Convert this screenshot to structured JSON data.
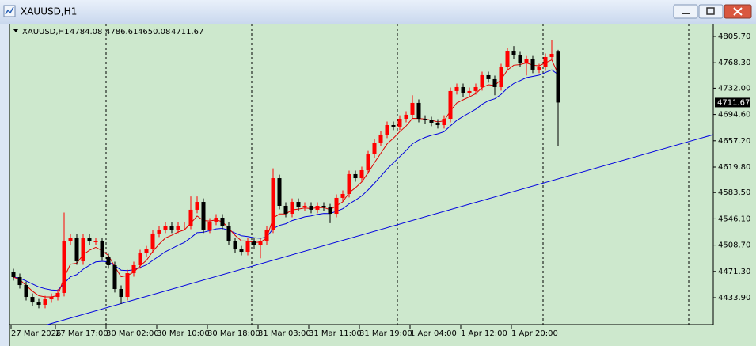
{
  "chart_data": {
    "type": "candlestick",
    "symbol": "XAUUSD,H1",
    "up_color": "#ff0000",
    "down_color": "#000000",
    "categories": [
      "27 Mar 2026",
      null,
      null,
      null,
      null,
      null,
      null,
      "27 Mar 17:00",
      null,
      null,
      null,
      null,
      null,
      null,
      null,
      "30 Mar 02:00",
      null,
      null,
      null,
      null,
      null,
      null,
      null,
      "30 Mar 10:00",
      null,
      null,
      null,
      null,
      null,
      null,
      null,
      "30 Mar 18:00",
      null,
      null,
      null,
      null,
      null,
      null,
      null,
      "31 Mar 03:00",
      null,
      null,
      null,
      null,
      null,
      null,
      null,
      "31 Mar 11:00",
      null,
      null,
      null,
      null,
      null,
      null,
      null,
      "31 Mar 19:00",
      null,
      null,
      null,
      null,
      null,
      null,
      null,
      "1 Apr 04:00",
      null,
      null,
      null,
      null,
      null,
      null,
      null,
      "1 Apr 12:00",
      null,
      null,
      null,
      null,
      null,
      null,
      null,
      "1 Apr 20:00",
      null,
      null,
      null,
      null,
      null,
      null,
      null
    ],
    "open": [
      4470,
      4463.2,
      4451.9,
      4435.0,
      4427.1,
      4423.8,
      4431.6,
      4435.0,
      4440.7,
      4513.9,
      4519.5,
      4485.7,
      4519.5,
      4513.9,
      4513.9,
      4491.4,
      4480.1,
      4446.3,
      4435.0,
      4468.8,
      4480.1,
      4497.0,
      4502.6,
      4525.2,
      4530.8,
      4536.4,
      4530.8,
      4536.4,
      4536.4,
      4559.0,
      4570.2,
      4530.8,
      4542.1,
      4547.7,
      4536.4,
      4513.9,
      4502.6,
      4499.2,
      4513.9,
      4508.3,
      4513.9,
      4530.8,
      4604.0,
      4564.6,
      4553.3,
      4570.2,
      4562.3,
      4564.6,
      4559.0,
      4564.6,
      4562.3,
      4553.3,
      4575.9,
      4581.5,
      4609.7,
      4604.0,
      4615.3,
      4637.8,
      4654.7,
      4666.0,
      4679.5,
      4677.3,
      4688.5,
      4694.2,
      4711.1,
      4688.5,
      4686.3,
      4682.9,
      4679.5,
      4688.5,
      4728.0,
      4733.6,
      4724.6,
      4728.0,
      4733.6,
      4750.5,
      4744.9,
      4733.6,
      4761.8,
      4784.3,
      4778.7,
      4767.4,
      4773.0,
      4758.4,
      4761.8,
      4776.4,
      4784.08
    ],
    "high": [
      4475.0,
      4468.2,
      4456.9,
      4440.0,
      4432.1,
      4436.6,
      4440.0,
      4445.7,
      4555.0,
      4524.5,
      4524.5,
      4524.5,
      4524.5,
      4518.9,
      4518.9,
      4496.4,
      4485.1,
      4451.3,
      4473.8,
      4485.1,
      4502.0,
      4507.6,
      4530.2,
      4535.8,
      4541.4,
      4541.4,
      4541.4,
      4541.4,
      4578.0,
      4578.0,
      4575.2,
      4547.1,
      4552.7,
      4552.7,
      4541.4,
      4518.9,
      4507.6,
      4518.9,
      4518.9,
      4518.9,
      4535.8,
      4618.0,
      4609.0,
      4569.6,
      4575.2,
      4575.2,
      4569.6,
      4569.6,
      4569.6,
      4569.6,
      4567.3,
      4580.9,
      4586.5,
      4614.7,
      4614.7,
      4620.3,
      4642.8,
      4659.7,
      4671.0,
      4684.5,
      4684.5,
      4693.5,
      4699.2,
      4722.0,
      4716.1,
      4693.5,
      4691.3,
      4687.9,
      4693.5,
      4733.0,
      4738.6,
      4738.6,
      4733.0,
      4738.6,
      4755.5,
      4755.5,
      4749.9,
      4766.8,
      4789.3,
      4792.0,
      4783.7,
      4778.0,
      4778.0,
      4766.8,
      4781.4,
      4800.0,
      4786.61
    ],
    "low": [
      4458.2,
      4446.9,
      4430.0,
      4422.1,
      4418.8,
      4418.8,
      4426.6,
      4430.0,
      4435.7,
      4508.9,
      4480.7,
      4480.7,
      4508.9,
      4508.9,
      4486.4,
      4475.1,
      4441.3,
      4425.0,
      4430.0,
      4463.8,
      4475.1,
      4492.0,
      4497.6,
      4520.2,
      4525.8,
      4525.8,
      4525.8,
      4531.4,
      4531.4,
      4554.0,
      4525.8,
      4525.8,
      4537.1,
      4531.4,
      4508.9,
      4497.6,
      4494.2,
      4494.2,
      4503.3,
      4490.0,
      4508.9,
      4525.8,
      4559.6,
      4548.3,
      4548.3,
      4557.3,
      4557.3,
      4554.0,
      4554.0,
      4557.3,
      4540.0,
      4548.3,
      4570.9,
      4576.5,
      4599.0,
      4599.0,
      4610.3,
      4632.8,
      4649.7,
      4661.0,
      4672.3,
      4672.3,
      4683.5,
      4689.2,
      4683.5,
      4681.3,
      4677.9,
      4674.5,
      4674.5,
      4683.5,
      4723.0,
      4719.6,
      4719.6,
      4723.0,
      4728.6,
      4739.9,
      4722.0,
      4728.6,
      4756.8,
      4773.7,
      4762.4,
      4750.0,
      4753.4,
      4753.4,
      4756.8,
      4771.4,
      4650.08
    ],
    "close": [
      4463.2,
      4451.9,
      4435.0,
      4427.1,
      4423.8,
      4431.6,
      4435.0,
      4440.7,
      4513.9,
      4519.5,
      4485.7,
      4519.5,
      4513.9,
      4513.9,
      4491.4,
      4480.1,
      4446.3,
      4435.0,
      4468.8,
      4480.1,
      4497.0,
      4502.6,
      4525.2,
      4530.8,
      4536.4,
      4530.8,
      4536.4,
      4536.4,
      4559.0,
      4570.2,
      4530.8,
      4542.1,
      4547.7,
      4536.4,
      4513.9,
      4502.6,
      4499.2,
      4513.9,
      4508.3,
      4513.9,
      4530.8,
      4604.0,
      4564.6,
      4553.3,
      4570.2,
      4562.3,
      4564.6,
      4559.0,
      4564.6,
      4562.3,
      4553.3,
      4575.9,
      4581.5,
      4609.7,
      4604.0,
      4615.3,
      4637.8,
      4654.7,
      4666.0,
      4679.5,
      4677.3,
      4688.5,
      4694.2,
      4711.1,
      4688.5,
      4686.3,
      4682.9,
      4679.5,
      4688.5,
      4728.0,
      4733.6,
      4724.6,
      4728.0,
      4733.6,
      4750.5,
      4744.9,
      4733.6,
      4761.8,
      4784.3,
      4778.7,
      4767.4,
      4773.0,
      4758.4,
      4761.8,
      4776.4,
      4780.9,
      4711.67
    ],
    "ylim": [
      4395.6,
      4823.7
    ],
    "yticks": [
      {
        "value": 4805.7,
        "label": "4805.70"
      },
      {
        "value": 4768.3,
        "label": "4768.30"
      },
      {
        "value": 4732.0,
        "label": "4732.00"
      },
      {
        "value": 4694.6,
        "label": "4694.60"
      },
      {
        "value": 4657.2,
        "label": "4657.20"
      },
      {
        "value": 4619.8,
        "label": "4619.80"
      },
      {
        "value": 4583.5,
        "label": "4583.50"
      },
      {
        "value": 4546.1,
        "label": "4546.10"
      },
      {
        "value": 4508.7,
        "label": "4508.70"
      },
      {
        "value": 4471.3,
        "label": "4471.30"
      },
      {
        "value": 4433.9,
        "label": "4433.90"
      }
    ]
  }
}
